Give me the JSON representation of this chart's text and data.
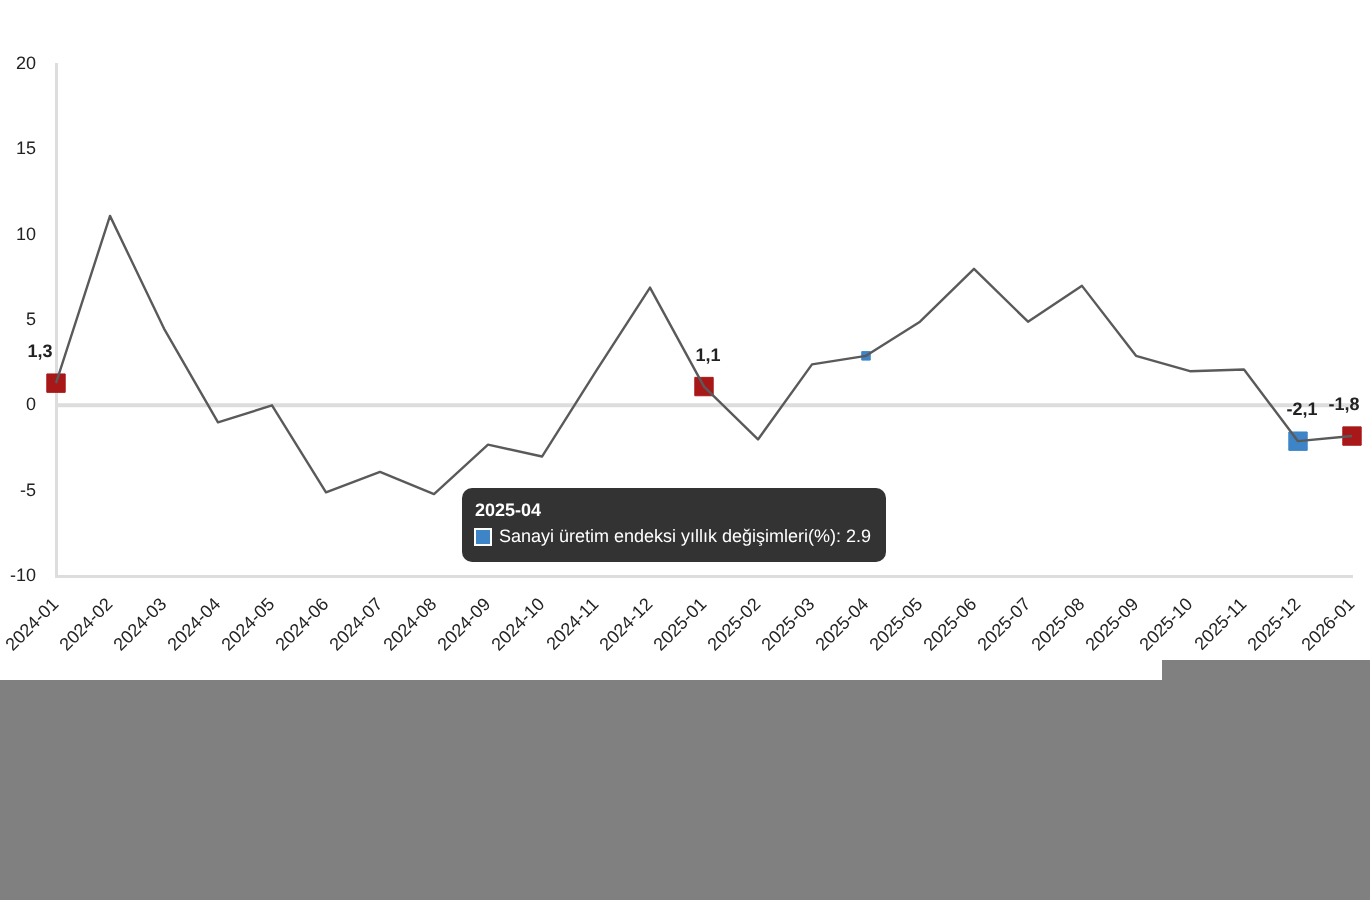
{
  "chart_data": {
    "type": "line",
    "categories": [
      "2024-01",
      "2024-02",
      "2024-03",
      "2024-04",
      "2024-05",
      "2024-06",
      "2024-07",
      "2024-08",
      "2024-09",
      "2024-10",
      "2024-11",
      "2024-12",
      "2025-01",
      "2025-02",
      "2025-03",
      "2025-04",
      "2025-05",
      "2025-06",
      "2025-07",
      "2025-08",
      "2025-09",
      "2025-10",
      "2025-11",
      "2025-12",
      "2026-01"
    ],
    "series": [
      {
        "color": "#5a5a5a",
        "marker": "none",
        "line_style": "solid",
        "values": [
          1.3,
          11.1,
          4.5,
          -1.0,
          0.0,
          -5.1,
          -3.9,
          -5.2,
          -2.3,
          -3.0,
          2.0,
          6.9,
          1.1,
          -2.0,
          2.4,
          2.9,
          4.9,
          8.0,
          4.9,
          7.0,
          2.9,
          2.0,
          2.1,
          -2.1,
          -1.8
        ]
      },
      {
        "type": "scatter",
        "marker": "square",
        "color": "#a81818",
        "values": [
          1.3,
          null,
          null,
          null,
          null,
          null,
          null,
          null,
          null,
          null,
          null,
          null,
          1.1,
          null,
          null,
          null,
          null,
          null,
          null,
          null,
          null,
          null,
          null,
          -2.1,
          -1.8
        ],
        "colors": [
          "#a81818",
          null,
          null,
          null,
          null,
          null,
          null,
          null,
          null,
          null,
          null,
          null,
          "#a81818",
          null,
          null,
          null,
          null,
          null,
          null,
          null,
          null,
          null,
          null,
          "#3d85c6",
          "#a81818"
        ],
        "value_labels": [
          "1,3",
          null,
          null,
          null,
          null,
          null,
          null,
          null,
          null,
          null,
          null,
          null,
          "1,1",
          null,
          null,
          null,
          null,
          null,
          null,
          null,
          null,
          null,
          null,
          "-2,1",
          "-1,8"
        ]
      },
      {
        "type": "scatter",
        "marker": "square",
        "color": "#3d85c6",
        "name": "Sanayi üretim endeksi yıllık değişimleri(%): 2.9",
        "values": [
          null,
          null,
          null,
          null,
          null,
          null,
          null,
          null,
          null,
          null,
          null,
          null,
          null,
          null,
          null,
          2.9,
          null,
          null,
          null,
          null,
          null,
          null,
          null,
          null,
          null
        ]
      }
    ],
    "ylim": [
      -10,
      20
    ],
    "yticks": [
      -10,
      -5,
      0,
      5,
      10,
      15,
      20
    ],
    "ref_lines": [
      {
        "axis": "y",
        "value": 0,
        "color": "#dddddd"
      }
    ],
    "legend": "bottom",
    "legend_title": "2025-04"
  }
}
